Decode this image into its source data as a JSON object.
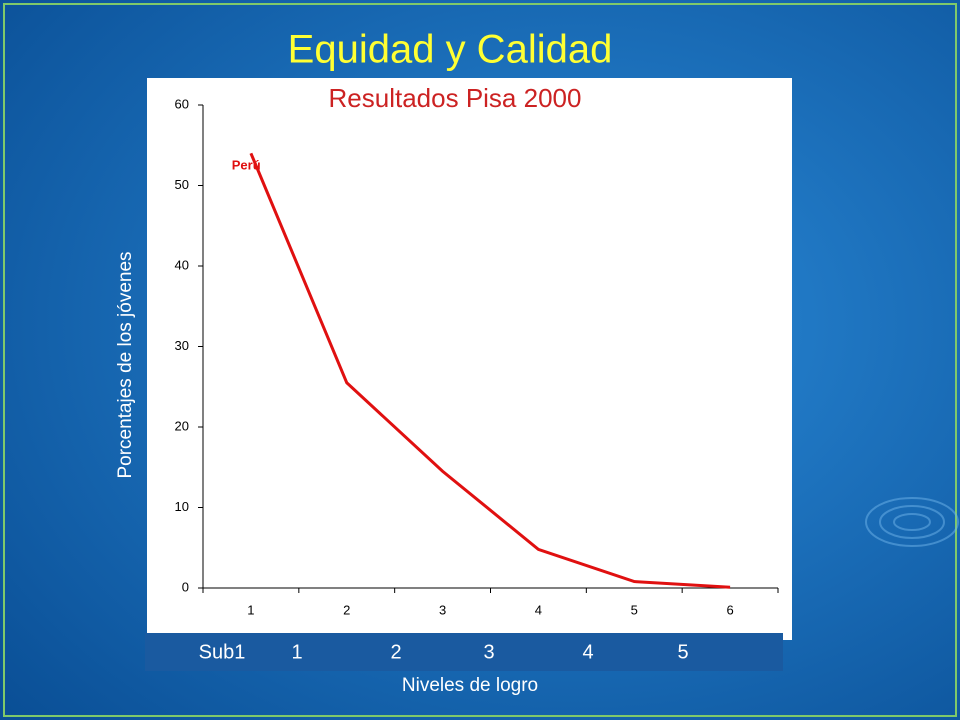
{
  "chart_data": {
    "type": "line",
    "title": "Equidad y Calidad",
    "subtitle": "Resultados Pisa 2000",
    "y_label": "Porcentajes de los jóvenes",
    "x_label": "Niveles de logro",
    "categories": [
      "1",
      "2",
      "3",
      "4",
      "5",
      "6"
    ],
    "series": [
      {
        "name": "Perú",
        "color": "#e01010",
        "values": [
          54,
          25.5,
          14.5,
          4.8,
          0.8,
          0.1
        ]
      }
    ],
    "ylim": [
      0,
      60
    ],
    "yticks": [
      0,
      10,
      20,
      30,
      40,
      50,
      60
    ],
    "grid": false,
    "overlay_labels": [
      "Sub1",
      "1",
      "2",
      "3",
      "4",
      "5"
    ]
  }
}
